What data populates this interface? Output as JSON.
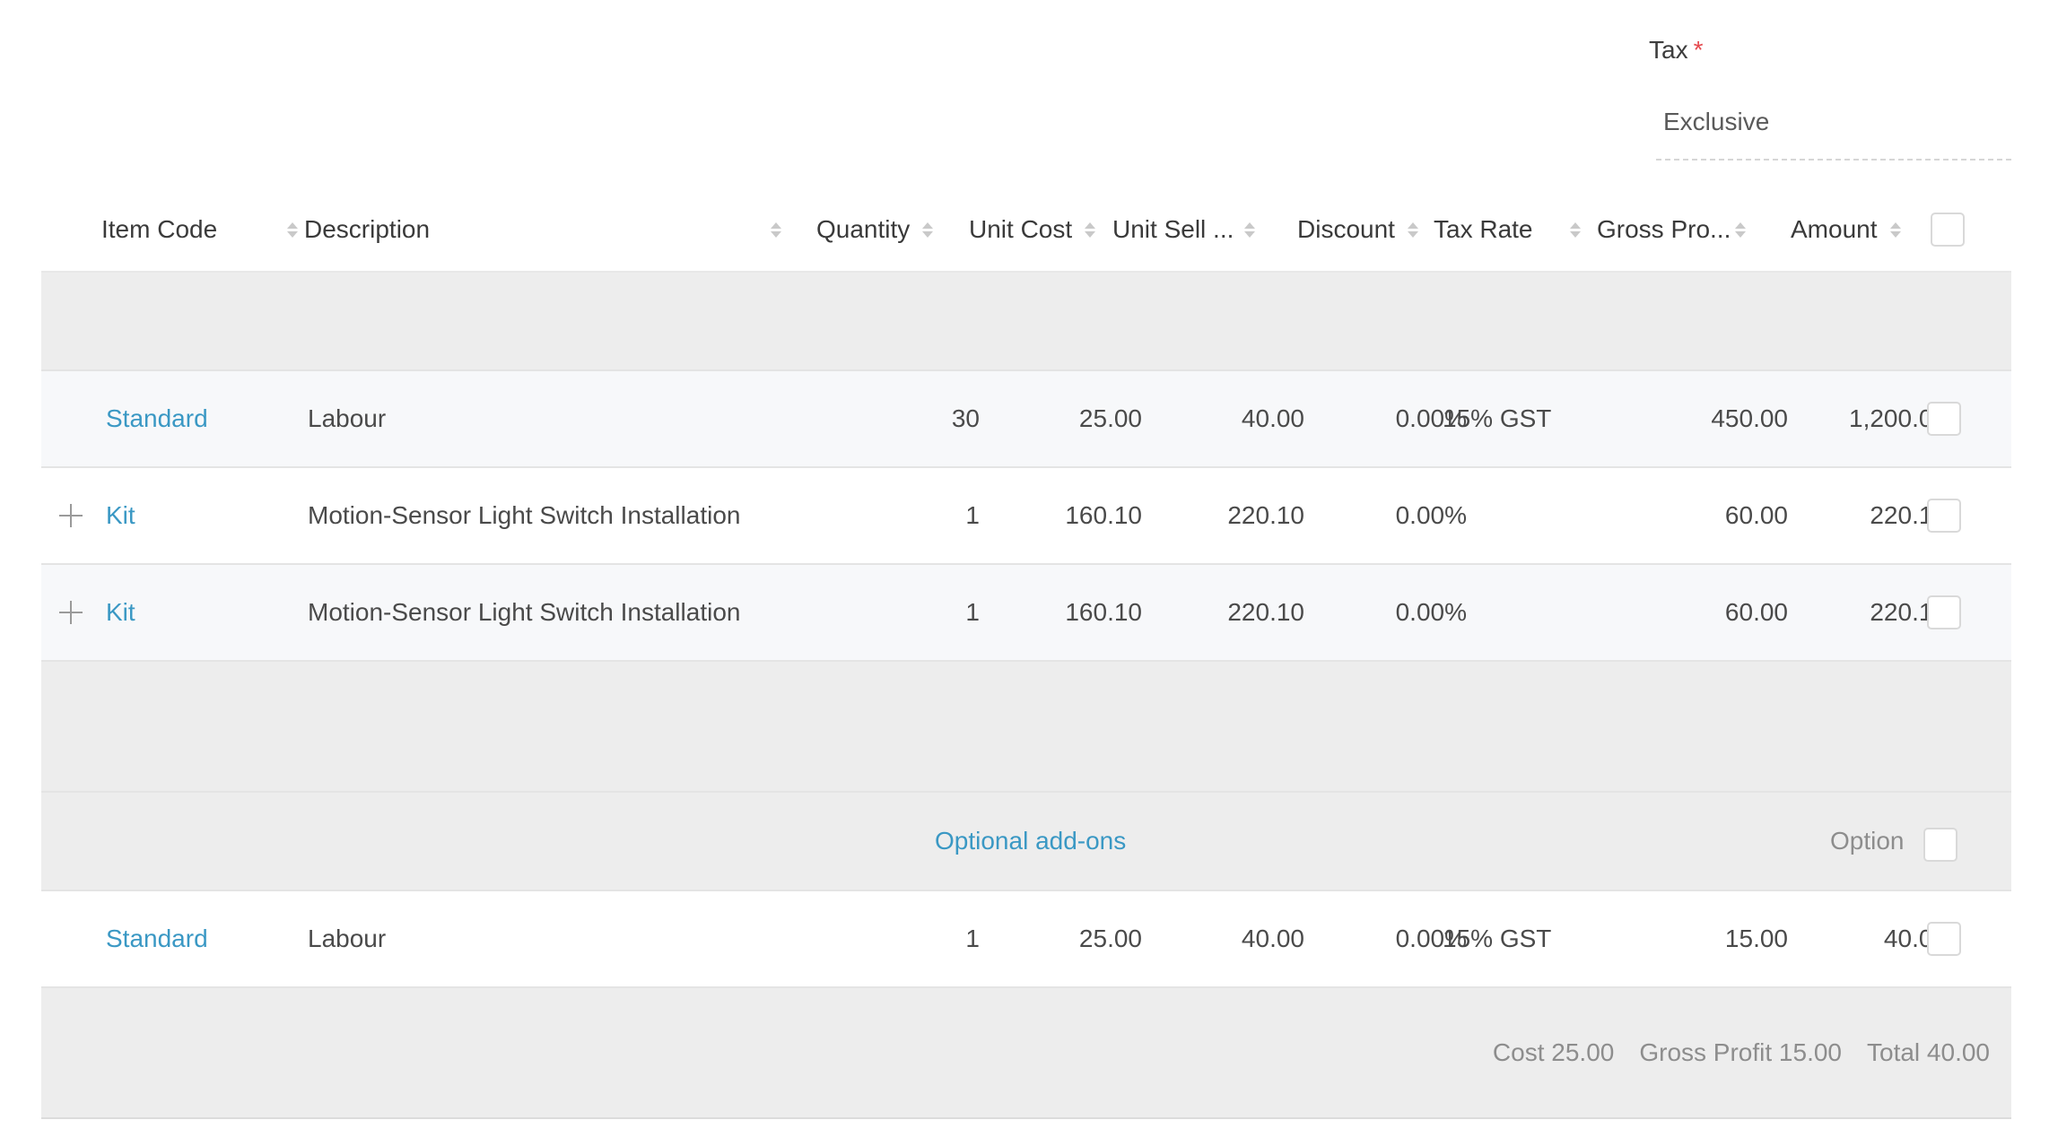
{
  "tax": {
    "label": "Tax",
    "required_mark": "*",
    "value": "Exclusive"
  },
  "table": {
    "headers": {
      "item_code": "Item Code",
      "description": "Description",
      "quantity": "Quantity",
      "unit_cost": "Unit Cost",
      "unit_sell": "Unit Sell ...",
      "discount": "Discount",
      "tax_rate": "Tax Rate",
      "gross_profit": "Gross Pro...",
      "amount": "Amount"
    },
    "rows": [
      {
        "item_code": "Standard",
        "description": "Labour",
        "quantity": "30",
        "unit_cost": "25.00",
        "unit_sell": "40.00",
        "discount": "0.00%",
        "tax_rate": "15% GST",
        "gross_profit": "450.00",
        "amount": "1,200.00"
      },
      {
        "item_code": "Kit",
        "description": "Motion-Sensor Light Switch Installation",
        "quantity": "1",
        "unit_cost": "160.10",
        "unit_sell": "220.10",
        "discount": "0.00%",
        "tax_rate": "",
        "gross_profit": "60.00",
        "amount": "220.10"
      },
      {
        "item_code": "Kit",
        "description": "Motion-Sensor Light Switch Installation",
        "quantity": "1",
        "unit_cost": "160.10",
        "unit_sell": "220.10",
        "discount": "0.00%",
        "tax_rate": "",
        "gross_profit": "60.00",
        "amount": "220.10"
      }
    ],
    "optional_section": {
      "title": "Optional add-ons",
      "option_label": "Option"
    },
    "optional_rows": [
      {
        "item_code": "Standard",
        "description": "Labour",
        "quantity": "1",
        "unit_cost": "25.00",
        "unit_sell": "40.00",
        "discount": "0.00%",
        "tax_rate": "15% GST",
        "gross_profit": "15.00",
        "amount": "40.00"
      }
    ],
    "summary": {
      "cost": "Cost 25.00",
      "gross_profit": "Gross Profit 15.00",
      "total": "Total 40.00"
    }
  },
  "colors": {
    "link": "#3a98c4",
    "required": "#e5484d",
    "band": "#ededed",
    "alt_row": "#f7f8fa"
  },
  "icons": [
    "sort-icon",
    "expand-plus-icon",
    "checkbox"
  ]
}
